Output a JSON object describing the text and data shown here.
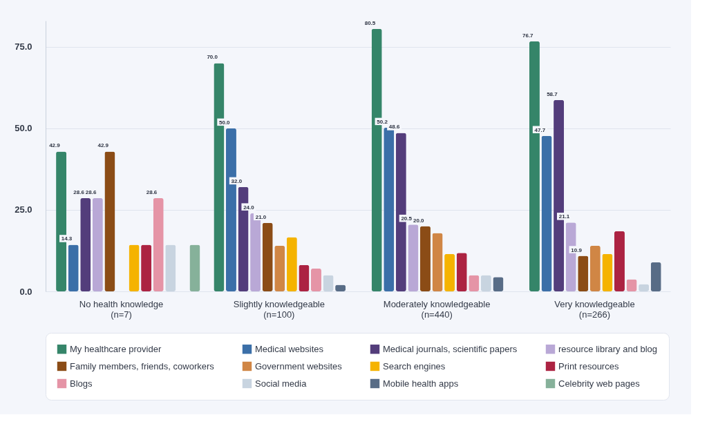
{
  "chart_data": {
    "type": "bar",
    "categories": [
      "No health knowledge\n(n=7)",
      "Slightly knowledgeable\n(n=100)",
      "Moderately knowledgeable\n(n=440)",
      "Very knowledgeable\n(n=266)"
    ],
    "series": [
      {
        "name": "My healthcare provider",
        "color": "#358569",
        "values": [
          42.9,
          70.0,
          80.5,
          76.7
        ],
        "value_labels": [
          "42.9",
          "70.0",
          "80.5",
          "76.7"
        ]
      },
      {
        "name": "Medical websites",
        "color": "#3b6fa8",
        "values": [
          14.3,
          50.0,
          50.2,
          47.7
        ],
        "value_labels": [
          "14.3",
          "50.0",
          "50.2",
          "47.7"
        ]
      },
      {
        "name": "Medical journals, scientific papers",
        "color": "#533d7b",
        "values": [
          28.6,
          32.0,
          48.6,
          58.7
        ],
        "value_labels": [
          "28.6",
          "32.0",
          "48.6",
          "58.7"
        ]
      },
      {
        "name": "resource library and blog",
        "color": "#b9a8d6",
        "values": [
          28.6,
          24.0,
          20.5,
          21.1
        ],
        "value_labels": [
          "28.6",
          "24.0",
          "20.5",
          "21.1"
        ]
      },
      {
        "name": "Family members, friends, coworkers",
        "color": "#8b4c16",
        "values": [
          42.9,
          21.0,
          20.0,
          10.9
        ],
        "value_labels": [
          "42.9",
          "21.0",
          "20.0",
          "10.9"
        ]
      },
      {
        "name": "Government websites",
        "color": "#d08645",
        "values": [
          null,
          14.0,
          17.9,
          14.0
        ]
      },
      {
        "name": "Search engines",
        "color": "#f5b300",
        "values": [
          14.3,
          16.6,
          11.5,
          11.5
        ]
      },
      {
        "name": "Print resources",
        "color": "#ac2342",
        "values": [
          14.3,
          8.1,
          11.8,
          18.5
        ]
      },
      {
        "name": "Blogs",
        "color": "#e594a6",
        "values": [
          28.6,
          7.0,
          5.0,
          3.7
        ],
        "value_labels": [
          "28.6",
          null,
          null,
          null
        ]
      },
      {
        "name": "Social media",
        "color": "#c8d4e0",
        "values": [
          14.3,
          5.0,
          5.0,
          2.2
        ]
      },
      {
        "name": "Mobile health apps",
        "color": "#586c86",
        "values": [
          null,
          2.0,
          4.4,
          8.9
        ]
      },
      {
        "name": "Celebrity web pages",
        "color": "#86b19a",
        "values": [
          14.3,
          null,
          null,
          null
        ]
      }
    ],
    "ylim": [
      0,
      83
    ],
    "yticks": [
      {
        "value": 0,
        "label": "0.0"
      },
      {
        "value": 25,
        "label": "25.0"
      },
      {
        "value": 50,
        "label": "50.0"
      },
      {
        "value": 75,
        "label": "75.0"
      }
    ],
    "grid": "y",
    "legend": "bottom"
  }
}
